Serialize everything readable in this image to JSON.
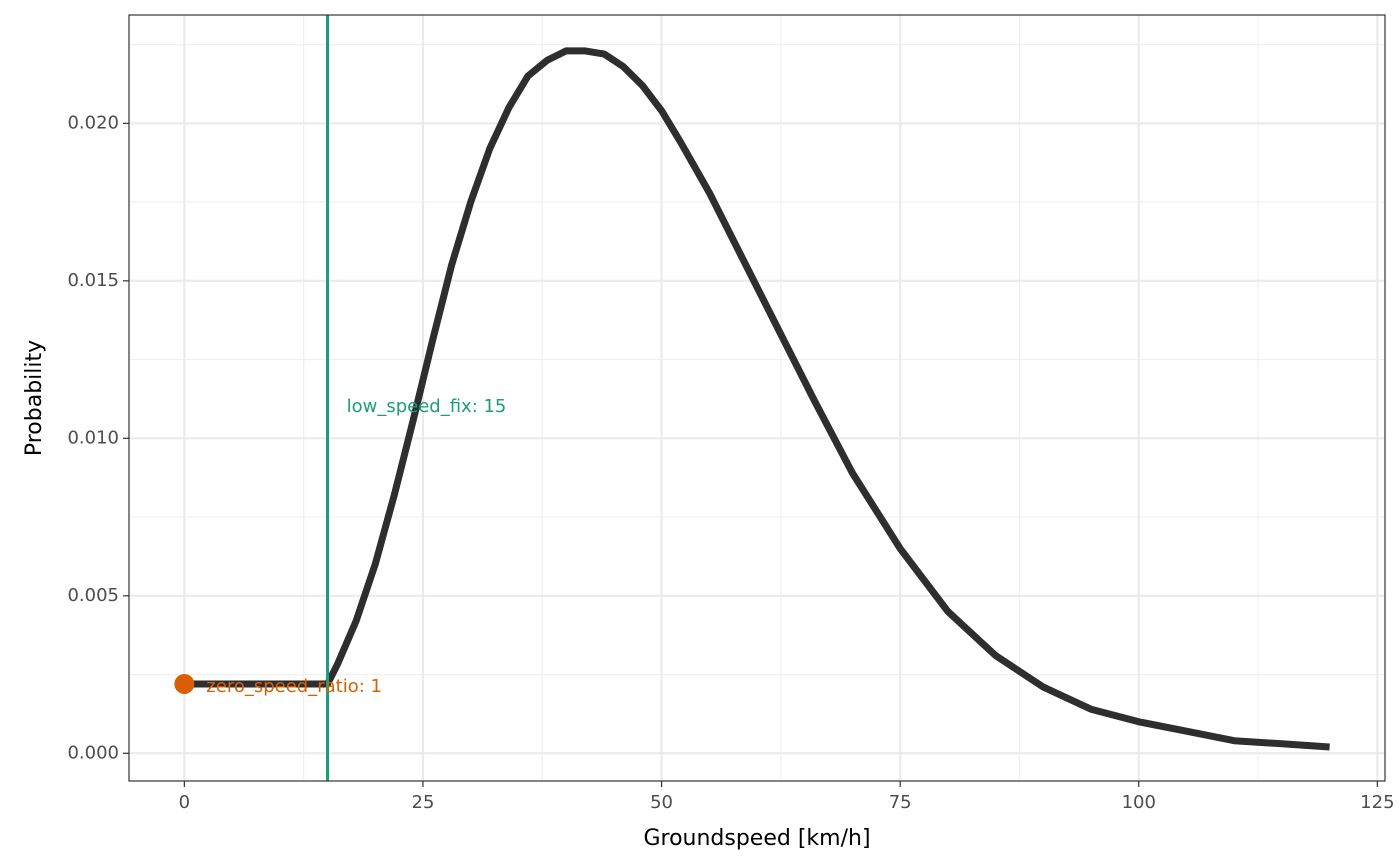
{
  "chart_data": {
    "type": "line",
    "xlabel": "Groundspeed [km/h]",
    "ylabel": "Probability",
    "xlim": [
      -5.8,
      125.8
    ],
    "ylim": [
      -0.00088,
      0.02344
    ],
    "x_ticks": [
      0,
      25,
      50,
      75,
      100,
      125
    ],
    "x_tick_labels": [
      "0",
      "25",
      "50",
      "75",
      "100",
      "125"
    ],
    "y_ticks": [
      0,
      0.005,
      0.01,
      0.015,
      0.02
    ],
    "y_tick_labels": [
      "0.000",
      "0.005",
      "0.010",
      "0.015",
      "0.020"
    ],
    "grid": true,
    "series": [
      {
        "color": "#2e2e2e",
        "points": [
          [
            0,
            0.0022
          ],
          [
            15,
            0.0022
          ],
          [
            16,
            0.0028
          ],
          [
            18,
            0.0042
          ],
          [
            20,
            0.006
          ],
          [
            22,
            0.0082
          ],
          [
            24,
            0.0106
          ],
          [
            26,
            0.0131
          ],
          [
            28,
            0.0155
          ],
          [
            30,
            0.0175
          ],
          [
            32,
            0.0192
          ],
          [
            34,
            0.0205
          ],
          [
            36,
            0.0215
          ],
          [
            38,
            0.022
          ],
          [
            40,
            0.0223
          ],
          [
            42,
            0.0223
          ],
          [
            44,
            0.0222
          ],
          [
            46,
            0.0218
          ],
          [
            48,
            0.0212
          ],
          [
            50,
            0.0204
          ],
          [
            52,
            0.0194
          ],
          [
            55,
            0.0178
          ],
          [
            58,
            0.016
          ],
          [
            62,
            0.0136
          ],
          [
            66,
            0.0112
          ],
          [
            70,
            0.0089
          ],
          [
            75,
            0.0065
          ],
          [
            80,
            0.0045
          ],
          [
            85,
            0.0031
          ],
          [
            90,
            0.0021
          ],
          [
            95,
            0.0014
          ],
          [
            100,
            0.001
          ],
          [
            105,
            0.0007
          ],
          [
            110,
            0.0004
          ],
          [
            115,
            0.0003
          ],
          [
            120,
            0.0002
          ]
        ]
      }
    ],
    "annotations": {
      "vline": {
        "x": 15,
        "color": "#1b9e77",
        "label": "low_speed_fix: 15",
        "label_x": 17,
        "label_y": 0.011
      },
      "point": {
        "x": 0,
        "y": 0.0022,
        "color": "#d95f02",
        "label": "zero_speed_ratio: 1",
        "label_x": 2.3,
        "label_y": 0.0021
      }
    }
  }
}
